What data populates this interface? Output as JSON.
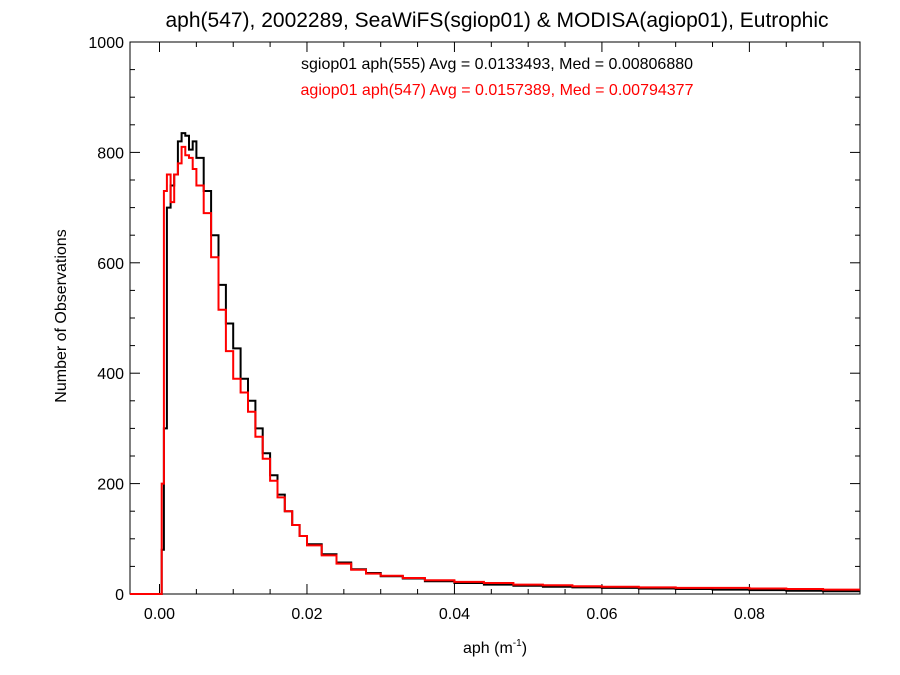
{
  "chart_data": {
    "type": "line",
    "style": "histogram-step",
    "title": "aph(547), 2002289, SeaWiFS(sgiop01) & MODISA(agiop01), Eutrophic",
    "xlabel": "aph (m",
    "xlabel_sup": "-1",
    "xlabel_close": ")",
    "ylabel": "Number of Observations",
    "xlim": [
      -0.004,
      0.095
    ],
    "ylim": [
      0,
      1000
    ],
    "x_ticks": [
      0.0,
      0.02,
      0.04,
      0.06,
      0.08
    ],
    "x_tick_labels": [
      "0.00",
      "0.02",
      "0.04",
      "0.06",
      "0.08"
    ],
    "y_ticks": [
      0,
      200,
      400,
      600,
      800,
      1000
    ],
    "y_tick_labels": [
      "0",
      "200",
      "400",
      "600",
      "800",
      "1000"
    ],
    "grid": false,
    "legend_position": "top-center",
    "annotations": [
      {
        "text": "sgiop01 aph(555) Avg = 0.0133493, Med = 0.00806880",
        "color": "#000000"
      },
      {
        "text": "agiop01 aph(547) Avg = 0.0157389, Med = 0.00794377",
        "color": "#ff0000"
      }
    ],
    "series": [
      {
        "color": "#000000",
        "x": [
          -0.004,
          0.0,
          0.0003,
          0.0006,
          0.001,
          0.0015,
          0.002,
          0.0025,
          0.003,
          0.0035,
          0.004,
          0.0045,
          0.005,
          0.006,
          0.007,
          0.008,
          0.009,
          0.01,
          0.011,
          0.012,
          0.013,
          0.014,
          0.015,
          0.016,
          0.017,
          0.018,
          0.019,
          0.02,
          0.022,
          0.024,
          0.026,
          0.028,
          0.03,
          0.033,
          0.036,
          0.04,
          0.044,
          0.048,
          0.052,
          0.056,
          0.06,
          0.065,
          0.07,
          0.075,
          0.08,
          0.085,
          0.09,
          0.095
        ],
        "y": [
          0,
          0,
          80,
          300,
          700,
          740,
          760,
          820,
          835,
          830,
          805,
          820,
          790,
          730,
          650,
          560,
          490,
          445,
          390,
          350,
          300,
          255,
          215,
          180,
          150,
          125,
          105,
          90,
          72,
          57,
          45,
          38,
          32,
          28,
          23,
          20,
          17,
          15,
          13,
          12,
          11,
          10,
          9,
          8,
          7,
          6,
          5,
          5
        ]
      },
      {
        "color": "#ff0000",
        "x": [
          -0.004,
          0.0,
          0.0003,
          0.0006,
          0.001,
          0.0015,
          0.002,
          0.0025,
          0.003,
          0.0035,
          0.004,
          0.0045,
          0.005,
          0.006,
          0.007,
          0.008,
          0.009,
          0.01,
          0.011,
          0.012,
          0.013,
          0.014,
          0.015,
          0.016,
          0.017,
          0.018,
          0.019,
          0.02,
          0.022,
          0.024,
          0.026,
          0.028,
          0.03,
          0.033,
          0.036,
          0.04,
          0.044,
          0.048,
          0.052,
          0.056,
          0.06,
          0.065,
          0.07,
          0.075,
          0.08,
          0.085,
          0.09,
          0.095
        ],
        "y": [
          0,
          0,
          200,
          730,
          760,
          710,
          760,
          780,
          810,
          795,
          790,
          770,
          740,
          690,
          610,
          515,
          440,
          390,
          365,
          330,
          285,
          245,
          205,
          175,
          150,
          125,
          105,
          88,
          70,
          55,
          44,
          37,
          33,
          29,
          25,
          22,
          20,
          17,
          16,
          14,
          13,
          12,
          11,
          11,
          10,
          9,
          8,
          8
        ]
      }
    ]
  }
}
